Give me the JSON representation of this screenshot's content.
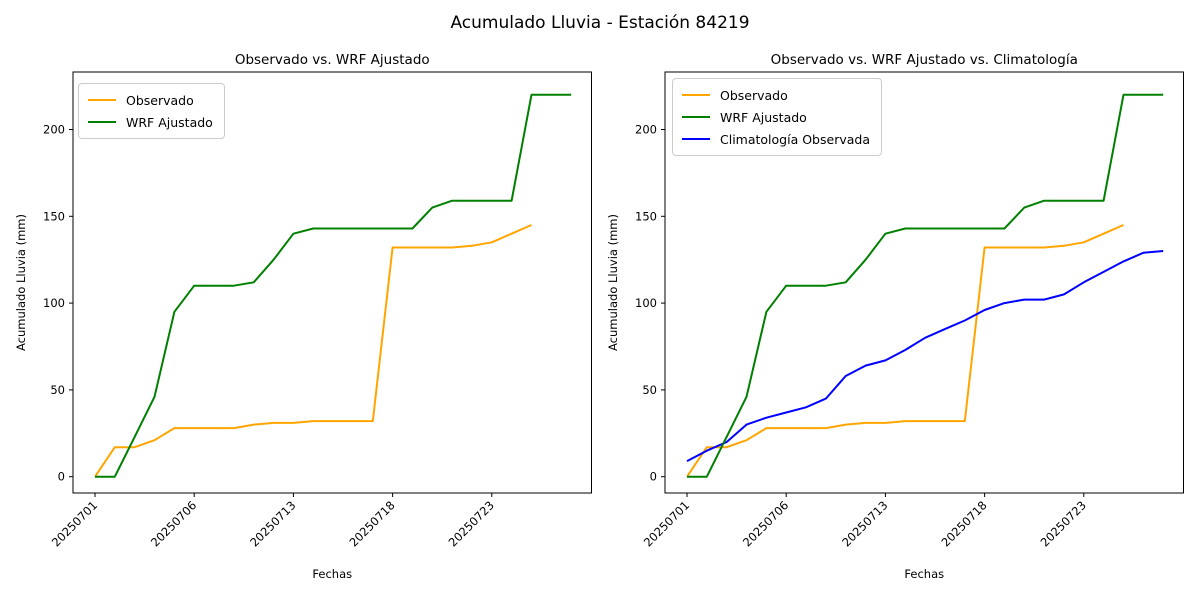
{
  "figure_title": "Acumulado Lluvia - Estación 84219",
  "axes": {
    "xlabel": "Fechas",
    "ylabel": "Acumulado Lluvia (mm)",
    "y_ticks": [
      0,
      50,
      100,
      150,
      200
    ],
    "x_tick_positions": [
      0,
      5,
      10,
      15,
      20
    ],
    "x_tick_labels": [
      "20250701",
      "20250706",
      "20250713",
      "20250718",
      "20250723"
    ]
  },
  "colors": {
    "observado": "#ffa500",
    "wrf_ajustado": "#008000",
    "climatologia": "#0000ff"
  },
  "subplots": [
    {
      "title": "Observado vs. WRF Ajustado",
      "legend": [
        {
          "label": "Observado",
          "series": "observado"
        },
        {
          "label": "WRF Ajustado",
          "series": "wrf_ajustado"
        }
      ]
    },
    {
      "title": "Observado vs. WRF Ajustado vs. Climatología",
      "legend": [
        {
          "label": "Observado",
          "series": "observado"
        },
        {
          "label": "WRF Ajustado",
          "series": "wrf_ajustado"
        },
        {
          "label": "Climatología Observada",
          "series": "climatologia"
        }
      ]
    }
  ],
  "chart_data": [
    {
      "type": "line",
      "title": "Observado vs. WRF Ajustado",
      "xlabel": "Fechas",
      "ylabel": "Acumulado Lluvia (mm)",
      "x": [
        0,
        1,
        2,
        3,
        4,
        5,
        6,
        7,
        8,
        9,
        10,
        11,
        12,
        13,
        14,
        15,
        16,
        17,
        18,
        19,
        20,
        21,
        22,
        23,
        24
      ],
      "x_tick_positions": [
        0,
        5,
        10,
        15,
        20
      ],
      "x_tick_labels": [
        "20250701",
        "20250706",
        "20250713",
        "20250718",
        "20250723"
      ],
      "ylim": [
        -10,
        233
      ],
      "grid": false,
      "legend_position": "upper left",
      "series": [
        {
          "name": "Observado",
          "color": "#ffa500",
          "values": [
            0,
            17,
            17,
            21,
            28,
            28,
            28,
            28,
            30,
            31,
            31,
            32,
            32,
            32,
            32,
            132,
            132,
            132,
            132,
            133,
            135,
            140,
            145
          ]
        },
        {
          "name": "WRF Ajustado",
          "color": "#008000",
          "values": [
            0,
            0,
            23,
            46,
            95,
            110,
            110,
            110,
            112,
            125,
            140,
            143,
            143,
            143,
            143,
            143,
            143,
            155,
            159,
            159,
            159,
            159,
            220,
            220,
            220
          ]
        }
      ]
    },
    {
      "type": "line",
      "title": "Observado vs. WRF Ajustado vs. Climatología",
      "xlabel": "Fechas",
      "ylabel": "Acumulado Lluvia (mm)",
      "x": [
        0,
        1,
        2,
        3,
        4,
        5,
        6,
        7,
        8,
        9,
        10,
        11,
        12,
        13,
        14,
        15,
        16,
        17,
        18,
        19,
        20,
        21,
        22,
        23,
        24
      ],
      "x_tick_positions": [
        0,
        5,
        10,
        15,
        20
      ],
      "x_tick_labels": [
        "20250701",
        "20250706",
        "20250713",
        "20250718",
        "20250723"
      ],
      "ylim": [
        -10,
        233
      ],
      "grid": false,
      "legend_position": "upper left",
      "series": [
        {
          "name": "Observado",
          "color": "#ffa500",
          "values": [
            0,
            17,
            17,
            21,
            28,
            28,
            28,
            28,
            30,
            31,
            31,
            32,
            32,
            32,
            32,
            132,
            132,
            132,
            132,
            133,
            135,
            140,
            145
          ]
        },
        {
          "name": "WRF Ajustado",
          "color": "#008000",
          "values": [
            0,
            0,
            23,
            46,
            95,
            110,
            110,
            110,
            112,
            125,
            140,
            143,
            143,
            143,
            143,
            143,
            143,
            155,
            159,
            159,
            159,
            159,
            220,
            220,
            220
          ]
        },
        {
          "name": "Climatología Observada",
          "color": "#0000ff",
          "values": [
            9,
            15,
            20,
            30,
            34,
            37,
            40,
            45,
            58,
            64,
            67,
            73,
            80,
            85,
            90,
            96,
            100,
            102,
            102,
            105,
            112,
            118,
            124,
            129,
            130
          ]
        }
      ]
    }
  ]
}
